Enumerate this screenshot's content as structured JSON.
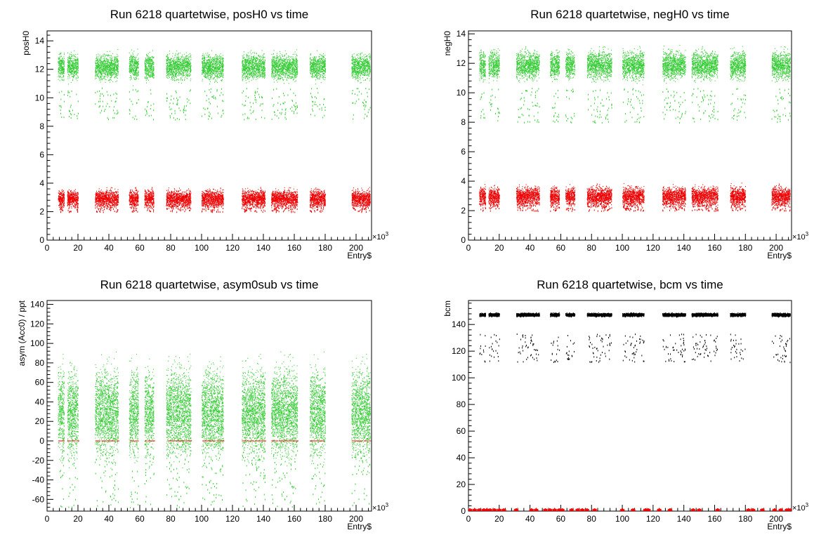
{
  "colors": {
    "green": "#33cc33",
    "red": "#ee0000",
    "black": "#000000"
  },
  "axis_multiplier": "×10",
  "axis_multiplier_exp": "3",
  "chart_data": [
    {
      "type": "scatter",
      "title": "Run 6218 quartetwise, posH0 vs time",
      "xlabel": "Entry$",
      "ylabel": "posH0",
      "xlim": [
        0,
        210
      ],
      "ylim": [
        0,
        14.7
      ],
      "xticks": [
        0,
        20,
        40,
        60,
        80,
        100,
        120,
        140,
        160,
        180,
        200
      ],
      "yticks": [
        0,
        2,
        4,
        6,
        8,
        10,
        12,
        14
      ],
      "segments": [
        [
          7,
          11
        ],
        [
          13,
          20
        ],
        [
          31,
          46
        ],
        [
          53,
          59
        ],
        [
          63,
          69
        ],
        [
          77,
          93
        ],
        [
          100,
          114
        ],
        [
          126,
          141
        ],
        [
          145,
          162
        ],
        [
          170,
          180
        ],
        [
          197,
          209
        ]
      ],
      "series": [
        {
          "color": "green",
          "center": 12.2,
          "spread": 0.85,
          "outlier_low": 8.5
        },
        {
          "color": "red",
          "center": 2.95,
          "spread": 0.55,
          "outlier_low": 2.0
        }
      ]
    },
    {
      "type": "scatter",
      "title": "Run 6218 quartetwise, negH0 vs time",
      "xlabel": "Entry$",
      "ylabel": "negH0",
      "xlim": [
        0,
        210
      ],
      "ylim": [
        0,
        14.2
      ],
      "xticks": [
        0,
        20,
        40,
        60,
        80,
        100,
        120,
        140,
        160,
        180,
        200
      ],
      "yticks": [
        0,
        2,
        4,
        6,
        8,
        10,
        12,
        14
      ],
      "segments": [
        [
          7,
          11
        ],
        [
          13,
          20
        ],
        [
          31,
          46
        ],
        [
          53,
          59
        ],
        [
          63,
          69
        ],
        [
          77,
          93
        ],
        [
          100,
          114
        ],
        [
          126,
          141
        ],
        [
          145,
          162
        ],
        [
          170,
          180
        ],
        [
          197,
          209
        ]
      ],
      "series": [
        {
          "color": "green",
          "center": 11.9,
          "spread": 0.9,
          "outlier_low": 8.0
        },
        {
          "color": "red",
          "center": 3.0,
          "spread": 0.6,
          "outlier_low": 2.0
        }
      ]
    },
    {
      "type": "scatter",
      "title": "Run 6218 quartetwise, asym0sub vs time",
      "xlabel": "Entry$",
      "ylabel": "asym (Acc0) / ppt",
      "xlim": [
        0,
        210
      ],
      "ylim": [
        -72,
        144
      ],
      "xticks": [
        0,
        20,
        40,
        60,
        80,
        100,
        120,
        140,
        160,
        180,
        200
      ],
      "yticks": [
        -60,
        -40,
        -20,
        0,
        20,
        40,
        60,
        80,
        100,
        120,
        140
      ],
      "segments": [
        [
          7,
          11
        ],
        [
          13,
          20
        ],
        [
          31,
          46
        ],
        [
          53,
          59
        ],
        [
          63,
          69
        ],
        [
          77,
          93
        ],
        [
          100,
          114
        ],
        [
          126,
          141
        ],
        [
          145,
          162
        ],
        [
          170,
          180
        ],
        [
          197,
          209
        ]
      ],
      "series": [
        {
          "color": "green",
          "center": 30,
          "spread": 42,
          "outlier_low": -68
        },
        {
          "color": "red",
          "center": 0,
          "spread": 0.5,
          "outlier_low": 0
        }
      ]
    },
    {
      "type": "scatter",
      "title": "Run 6218 quartetwise, bcm vs time",
      "xlabel": "Entry$",
      "ylabel": "bcm",
      "xlim": [
        0,
        210
      ],
      "ylim": [
        0,
        158
      ],
      "xticks": [
        0,
        20,
        40,
        60,
        80,
        100,
        120,
        140,
        160,
        180,
        200
      ],
      "yticks": [
        0,
        20,
        40,
        60,
        80,
        100,
        120,
        140
      ],
      "segments": [
        [
          7,
          11
        ],
        [
          13,
          20
        ],
        [
          31,
          46
        ],
        [
          53,
          59
        ],
        [
          63,
          69
        ],
        [
          77,
          93
        ],
        [
          100,
          114
        ],
        [
          126,
          141
        ],
        [
          145,
          162
        ],
        [
          170,
          180
        ],
        [
          197,
          209
        ]
      ],
      "series": [
        {
          "color": "black",
          "center": 147.5,
          "spread": 1.2,
          "outlier_low": 112
        }
      ],
      "cut_markers": [
        1,
        4,
        7,
        10,
        12,
        14,
        17,
        20,
        23,
        31,
        41,
        44,
        50,
        53,
        56,
        59,
        61,
        67,
        71,
        74,
        77,
        82,
        100,
        107,
        115,
        117,
        124,
        131,
        146,
        150,
        162,
        182,
        185,
        191,
        199,
        203,
        207,
        209
      ]
    }
  ]
}
